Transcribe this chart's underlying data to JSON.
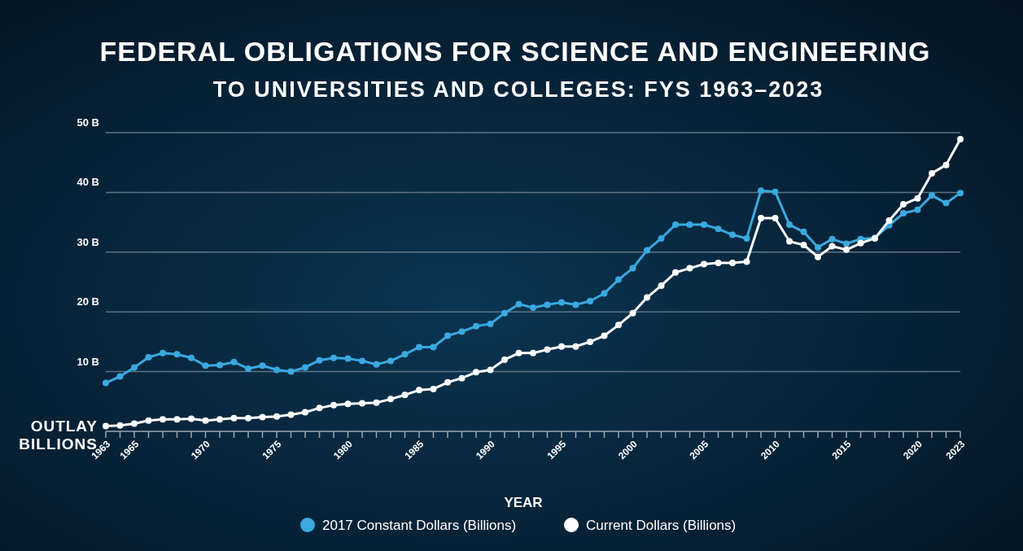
{
  "chart_data": {
    "type": "line",
    "title": "FEDERAL OBLIGATIONS FOR SCIENCE AND ENGINEERING",
    "subtitle": "TO UNIVERSITIES AND COLLEGES: FYS 1963–2023",
    "xlabel": "YEAR",
    "ylabel": "OUTLAY BILLIONS",
    "x": [
      1963,
      1964,
      1965,
      1966,
      1967,
      1968,
      1969,
      1970,
      1971,
      1972,
      1973,
      1974,
      1975,
      1976,
      1977,
      1978,
      1979,
      1980,
      1981,
      1982,
      1983,
      1984,
      1985,
      1986,
      1987,
      1988,
      1989,
      1990,
      1991,
      1992,
      1993,
      1994,
      1995,
      1996,
      1997,
      1998,
      1999,
      2000,
      2001,
      2002,
      2003,
      2004,
      2005,
      2006,
      2007,
      2008,
      2009,
      2010,
      2011,
      2012,
      2013,
      2014,
      2015,
      2016,
      2017,
      2018,
      2019,
      2020,
      2021,
      2022,
      2023
    ],
    "series": [
      {
        "name": "2017 Constant Dollars (Billions)",
        "color": "#3aa9e0",
        "values": [
          8.1,
          9.2,
          10.7,
          12.4,
          13.1,
          12.9,
          12.3,
          11.0,
          11.1,
          11.6,
          10.5,
          11.0,
          10.3,
          10.0,
          10.7,
          11.9,
          12.3,
          12.2,
          11.8,
          11.2,
          11.8,
          12.9,
          14.1,
          14.1,
          16.0,
          16.7,
          17.6,
          18.0,
          19.8,
          21.3,
          20.7,
          21.2,
          21.6,
          21.2,
          21.8,
          23.1,
          25.4,
          27.3,
          30.3,
          32.3,
          34.6,
          34.6,
          34.6,
          33.9,
          32.9,
          32.3,
          40.3,
          40.1,
          34.6,
          33.4,
          30.8,
          32.2,
          31.4,
          32.2,
          32.4,
          34.5,
          36.5,
          37.1,
          39.5,
          38.2,
          39.9
        ]
      },
      {
        "name": "Current Dollars (Billions)",
        "color": "#ffffff",
        "values": [
          0.9,
          1.0,
          1.3,
          1.8,
          2.0,
          2.0,
          2.1,
          1.8,
          2.0,
          2.2,
          2.2,
          2.4,
          2.5,
          2.8,
          3.2,
          3.9,
          4.4,
          4.6,
          4.7,
          4.8,
          5.4,
          6.1,
          6.9,
          7.1,
          8.2,
          8.9,
          9.9,
          10.3,
          12.0,
          13.1,
          13.1,
          13.7,
          14.2,
          14.2,
          15.0,
          16.0,
          17.8,
          19.8,
          22.4,
          24.4,
          26.6,
          27.3,
          28.0,
          28.2,
          28.2,
          28.4,
          35.7,
          35.7,
          31.8,
          31.2,
          29.2,
          31.0,
          30.4,
          31.5,
          32.3,
          35.3,
          38.0,
          39.0,
          43.2,
          44.6,
          48.9
        ]
      }
    ],
    "xlim": [
      1963,
      2023
    ],
    "xticks": [
      1963,
      {
        "value": 1964,
        "label": null
      },
      1965,
      {
        "value": 1966,
        "label": null
      },
      {
        "value": 1967,
        "label": null
      },
      {
        "value": 1968,
        "label": null
      },
      {
        "value": 1969,
        "label": null
      },
      1970,
      {
        "value": 1971,
        "label": null
      },
      {
        "value": 1972,
        "label": null
      },
      {
        "value": 1973,
        "label": null
      },
      {
        "value": 1974,
        "label": null
      },
      1975,
      {
        "value": 1976,
        "label": null
      },
      {
        "value": 1977,
        "label": null
      },
      {
        "value": 1978,
        "label": null
      },
      {
        "value": 1979,
        "label": null
      },
      1980,
      {
        "value": 1981,
        "label": null
      },
      {
        "value": 1982,
        "label": null
      },
      {
        "value": 1983,
        "label": null
      },
      {
        "value": 1984,
        "label": null
      },
      1985,
      {
        "value": 1986,
        "label": null
      },
      {
        "value": 1987,
        "label": null
      },
      {
        "value": 1988,
        "label": null
      },
      {
        "value": 1989,
        "label": null
      },
      1990,
      {
        "value": 1991,
        "label": null
      },
      {
        "value": 1992,
        "label": null
      },
      {
        "value": 1993,
        "label": null
      },
      {
        "value": 1994,
        "label": null
      },
      1995,
      {
        "value": 1996,
        "label": null
      },
      {
        "value": 1997,
        "label": null
      },
      {
        "value": 1998,
        "label": null
      },
      {
        "value": 1999,
        "label": null
      },
      2000,
      {
        "value": 2001,
        "label": null
      },
      {
        "value": 2002,
        "label": null
      },
      {
        "value": 2003,
        "label": null
      },
      {
        "value": 2004,
        "label": null
      },
      2005,
      {
        "value": 2006,
        "label": null
      },
      {
        "value": 2007,
        "label": null
      },
      {
        "value": 2008,
        "label": null
      },
      {
        "value": 2009,
        "label": null
      },
      2010,
      {
        "value": 2011,
        "label": null
      },
      {
        "value": 2012,
        "label": null
      },
      {
        "value": 2013,
        "label": null
      },
      {
        "value": 2014,
        "label": null
      },
      2015,
      {
        "value": 2016,
        "label": null
      },
      {
        "value": 2017,
        "label": null
      },
      {
        "value": 2018,
        "label": null
      },
      {
        "value": 2019,
        "label": null
      },
      2020,
      {
        "value": 2021,
        "label": null
      },
      {
        "value": 2022,
        "label": null
      },
      2023
    ],
    "ylim": [
      0,
      50
    ],
    "yticks": [
      {
        "value": 10,
        "label": "10 B"
      },
      {
        "value": 20,
        "label": "20 B"
      },
      {
        "value": 30,
        "label": "30 B"
      },
      {
        "value": 40,
        "label": "40 B"
      },
      {
        "value": 50,
        "label": "50 B"
      }
    ],
    "grid": "y",
    "legend": "bottom",
    "marker": "circle",
    "line_style": "solid"
  }
}
